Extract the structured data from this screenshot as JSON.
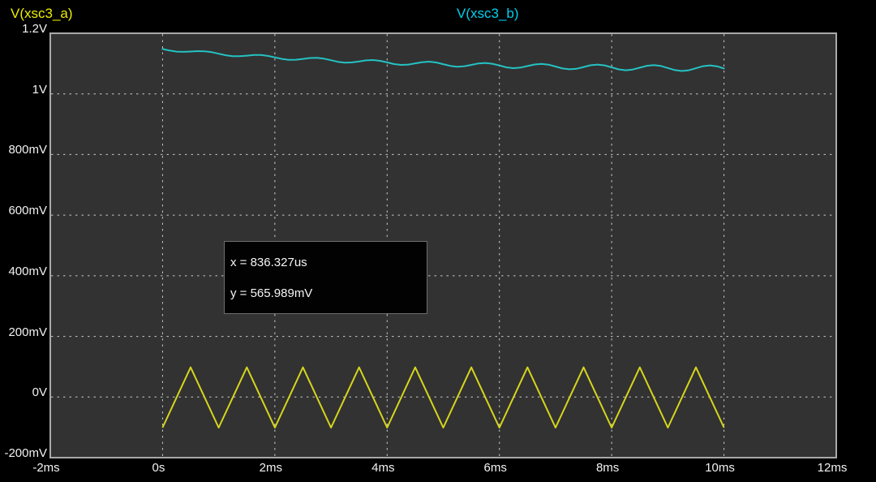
{
  "chart_data": {
    "type": "line",
    "title": "",
    "background_color": "#000000",
    "plot_bg_color": "#323232",
    "grid_color": "#c9c9c9",
    "border_color": "#a9a9a9",
    "grid": "dashed, at every labeled tick",
    "legend_position": "top",
    "legend": [
      {
        "label": "V(xsc3_a)",
        "color": "#eded00"
      },
      {
        "label": "V(xsc3_b)",
        "color": "#00cfee"
      }
    ],
    "x_axis": {
      "label": "",
      "range_ms": [
        -2,
        12
      ],
      "ticks": [
        {
          "value_ms": -2,
          "label": "-2ms"
        },
        {
          "value_ms": 0,
          "label": "0s"
        },
        {
          "value_ms": 2,
          "label": "2ms"
        },
        {
          "value_ms": 4,
          "label": "4ms"
        },
        {
          "value_ms": 6,
          "label": "6ms"
        },
        {
          "value_ms": 8,
          "label": "8ms"
        },
        {
          "value_ms": 10,
          "label": "10ms"
        },
        {
          "value_ms": 12,
          "label": "12ms"
        }
      ]
    },
    "y_axis": {
      "label": "",
      "range_v": [
        -0.2,
        1.2
      ],
      "ticks": [
        {
          "value_v": 1.2,
          "label": "1.2V"
        },
        {
          "value_v": 1.0,
          "label": "1V"
        },
        {
          "value_v": 0.8,
          "label": "800mV"
        },
        {
          "value_v": 0.6,
          "label": "600mV"
        },
        {
          "value_v": 0.4,
          "label": "400mV"
        },
        {
          "value_v": 0.2,
          "label": "200mV"
        },
        {
          "value_v": 0.0,
          "label": "0V"
        },
        {
          "value_v": -0.2,
          "label": "-200mV"
        }
      ]
    },
    "series": [
      {
        "name": "V(xsc3_a)",
        "color": "#d5d51e",
        "waveform": "triangle, 1 kHz, approx -100mV to +100mV, runs 0s to 10ms",
        "points_t_ms_v": [
          [
            0,
            -0.101
          ],
          [
            0.5,
            0.098
          ],
          [
            1,
            -0.101
          ],
          [
            1.5,
            0.098
          ],
          [
            2,
            -0.101
          ],
          [
            2.5,
            0.098
          ],
          [
            3,
            -0.101
          ],
          [
            3.5,
            0.098
          ],
          [
            4,
            -0.101
          ],
          [
            4.5,
            0.098
          ],
          [
            5,
            -0.101
          ],
          [
            5.5,
            0.098
          ],
          [
            6,
            -0.101
          ],
          [
            6.5,
            0.098
          ],
          [
            7,
            -0.101
          ],
          [
            7.5,
            0.098
          ],
          [
            8,
            -0.101
          ],
          [
            8.5,
            0.098
          ],
          [
            9,
            -0.101
          ],
          [
            9.5,
            0.098
          ],
          [
            10,
            -0.101
          ]
        ]
      },
      {
        "name": "V(xsc3_b)",
        "color": "#25c2c2",
        "waveform": "slow decay from ~1.148V toward ~1.08V with growing ~1kHz ripple, runs 0s to 10ms",
        "t_start_ms": 0,
        "t_step_ms": 0.125,
        "values_v": [
          1.148,
          1.143,
          1.1396,
          1.1388,
          1.1398,
          1.141,
          1.1405,
          1.1375,
          1.1325,
          1.1275,
          1.1245,
          1.1242,
          1.1261,
          1.1282,
          1.1283,
          1.1254,
          1.1205,
          1.1154,
          1.1125,
          1.1128,
          1.1155,
          1.1183,
          1.1188,
          1.1162,
          1.1111,
          1.1059,
          1.1031,
          1.1038,
          1.1072,
          1.1107,
          1.1117,
          1.109,
          1.1038,
          1.0984,
          1.0956,
          1.0968,
          1.1007,
          1.1048,
          1.1062,
          1.1036,
          1.0981,
          1.0924,
          1.0897,
          1.0912,
          1.0957,
          1.1004,
          1.1021,
          1.0994,
          1.0936,
          1.0877,
          1.0849,
          1.0867,
          1.0918,
          1.097,
          1.099,
          1.0963,
          1.0902,
          1.0839,
          1.0811,
          1.0831,
          1.0887,
          1.0945,
          1.0967,
          1.0939,
          1.0875,
          1.0809,
          1.078,
          1.0803,
          1.0864,
          1.0926,
          1.0951,
          1.0922,
          1.0854,
          1.0785,
          1.0754,
          1.0779,
          1.0845,
          1.0912,
          1.094,
          1.091,
          1.0838
        ]
      }
    ],
    "cursor_readout": {
      "x_line": "x = 836.327us",
      "y_line": "y = 565.989mV"
    }
  }
}
